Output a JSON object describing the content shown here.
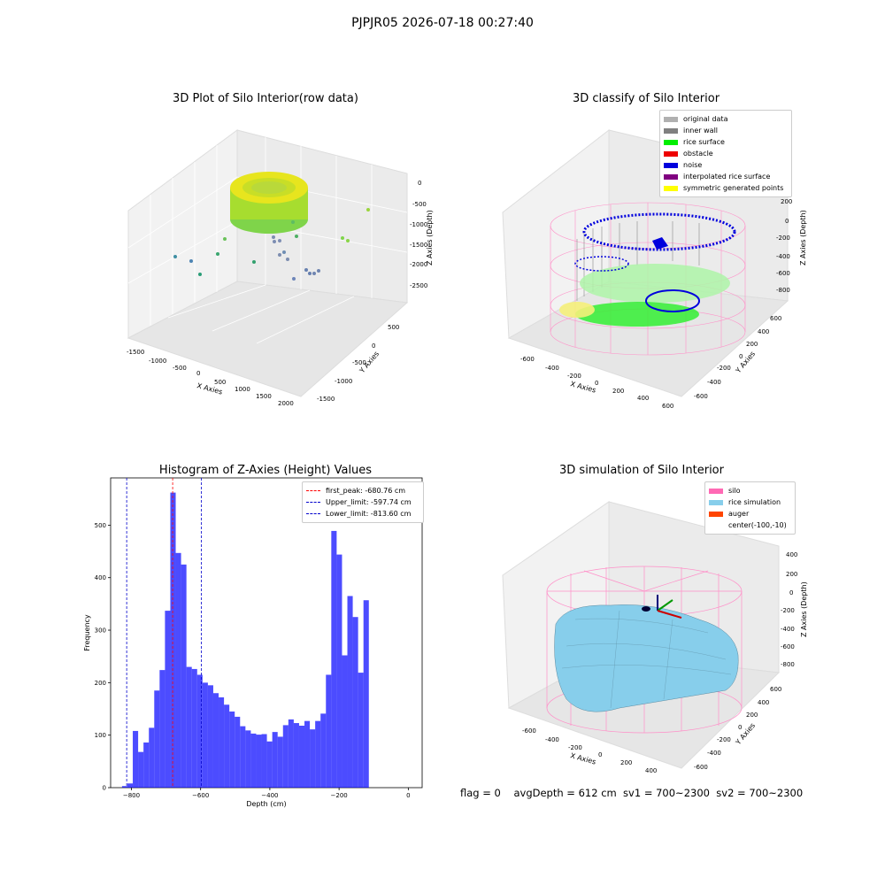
{
  "figure": {
    "suptitle": "PJPJR05 2026-07-18 00:27:40",
    "footer": "flag = 0    avgDepth = 612 cm  sv1 = 700~2300  sv2 = 700~2300"
  },
  "panels": {
    "raw": {
      "title": "3D Plot of Silo Interior(row data)",
      "xlabel": "X Axies",
      "ylabel": "Y Axies",
      "zlabel": "Z Axies (Depth)",
      "x_ticks": [
        "-1500",
        "-1000",
        "-500",
        "0",
        "500",
        "1000",
        "1500",
        "2000"
      ],
      "y_ticks": [
        "500",
        "0",
        "-500",
        "-1000",
        "-1500"
      ],
      "z_ticks": [
        "0",
        "-500",
        "-1000",
        "-1500",
        "-2000",
        "-2500"
      ]
    },
    "classify": {
      "title": "3D classify of Silo Interior",
      "xlabel": "X Axies",
      "ylabel": "Y Axies",
      "zlabel": "Z Axies (Depth)",
      "x_ticks": [
        "-600",
        "-400",
        "-200",
        "0",
        "200",
        "400",
        "600"
      ],
      "y_ticks": [
        "600",
        "400",
        "200",
        "0",
        "-200",
        "-400",
        "-600"
      ],
      "z_ticks": [
        "200",
        "0",
        "-200",
        "-400",
        "-600",
        "-800"
      ],
      "legend": [
        {
          "label": "original data",
          "color": "#b0b0b0"
        },
        {
          "label": "inner wall",
          "color": "#808080"
        },
        {
          "label": "rice surface",
          "color": "#00ee00"
        },
        {
          "label": "obstacle",
          "color": "#ee0000"
        },
        {
          "label": "noise",
          "color": "#0000dd"
        },
        {
          "label": "interpolated rice surface",
          "color": "#800080"
        },
        {
          "label": "symmetric generated points",
          "color": "#ffff00"
        }
      ]
    },
    "simulation": {
      "title": "3D simulation of Silo Interior",
      "xlabel": "X Axies",
      "ylabel": "Y Axies",
      "zlabel": "Z Axies (Depth)",
      "x_ticks": [
        "-600",
        "-400",
        "-200",
        "0",
        "200",
        "400"
      ],
      "y_ticks": [
        "600",
        "400",
        "200",
        "0",
        "-200",
        "-400",
        "-600"
      ],
      "z_ticks": [
        "400",
        "200",
        "0",
        "-200",
        "-400",
        "-600",
        "-800"
      ],
      "legend": [
        {
          "label": "silo",
          "color": "#ff69b4"
        },
        {
          "label": "rice simulation",
          "color": "#87ceeb"
        },
        {
          "label": "auger",
          "color": "#ff4500"
        },
        {
          "label": "center(-100,-10)",
          "color": "#ffffff"
        }
      ]
    }
  },
  "chart_data": {
    "type": "bar",
    "title": "Histogram of Z-Axies (Height) Values",
    "xlabel": "Depth (cm)",
    "ylabel": "Frequency",
    "xlim": [
      -860,
      40
    ],
    "ylim": [
      0,
      590
    ],
    "x_ticks": [
      -800,
      -600,
      -400,
      -200,
      0
    ],
    "y_ticks": [
      0,
      100,
      200,
      300,
      400,
      500
    ],
    "bin_start": -827,
    "bin_width": 15.5,
    "values": [
      3,
      8,
      108,
      68,
      86,
      114,
      185,
      224,
      337,
      562,
      447,
      425,
      230,
      226,
      215,
      200,
      195,
      180,
      172,
      158,
      145,
      135,
      117,
      109,
      103,
      101,
      102,
      88,
      106,
      97,
      119,
      130,
      123,
      118,
      127,
      111,
      127,
      141,
      215,
      489,
      444,
      252,
      365,
      325,
      219,
      357
    ],
    "bar_color": "#0000ff",
    "vlines": [
      {
        "label": "first_peak: -680.76 cm",
        "x": -680.76,
        "color": "#ff0000"
      },
      {
        "label": "Upper_limit: -597.74 cm",
        "x": -597.74,
        "color": "#0000cc"
      },
      {
        "label": "Lower_limit: -813.60 cm",
        "x": -813.6,
        "color": "#0000cc"
      }
    ],
    "legend_position": "top-right"
  }
}
